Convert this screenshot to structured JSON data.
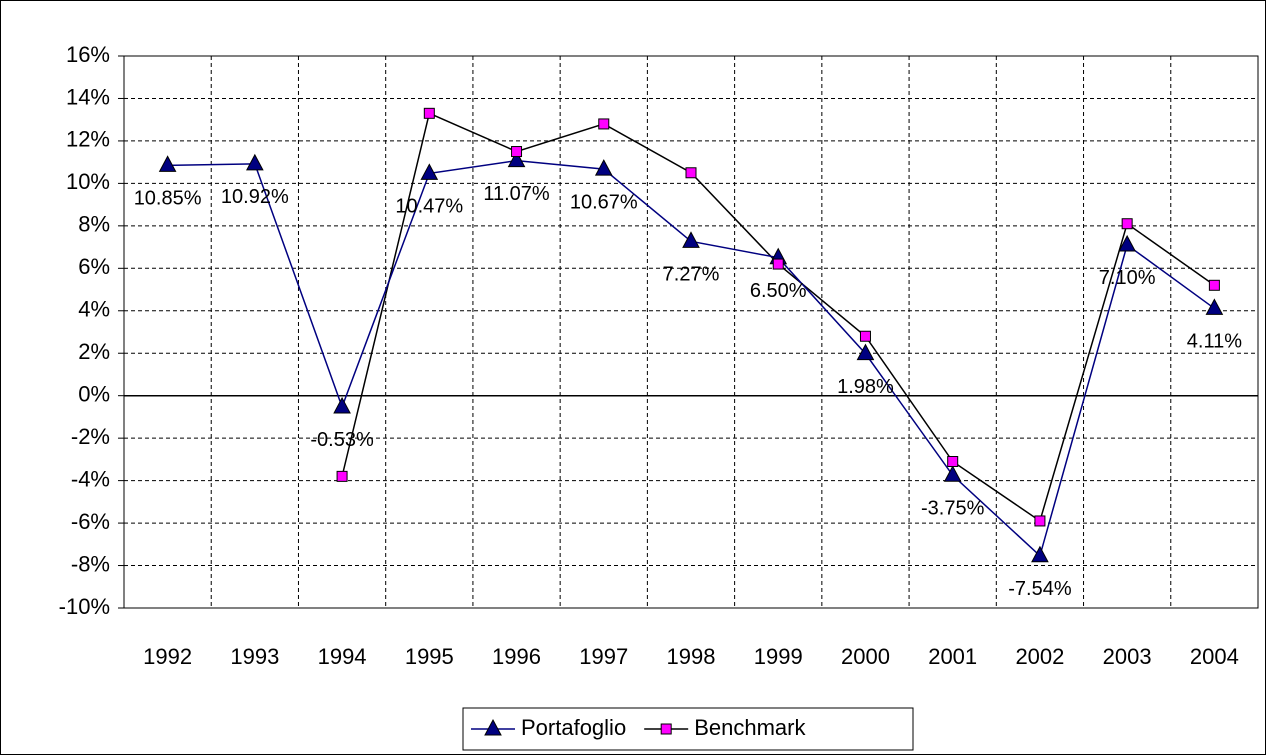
{
  "chart_data": {
    "type": "line",
    "categories": [
      "1992",
      "1993",
      "1994",
      "1995",
      "1996",
      "1997",
      "1998",
      "1999",
      "2000",
      "2001",
      "2002",
      "2003",
      "2004"
    ],
    "series": [
      {
        "name": "Portafoglio",
        "color": "#000080",
        "marker": "triangle",
        "values": [
          10.85,
          10.92,
          -0.53,
          10.47,
          11.07,
          10.67,
          7.27,
          6.5,
          1.98,
          -3.75,
          -7.54,
          7.1,
          4.11
        ],
        "value_labels": [
          "10.85%",
          "10.92%",
          "-0.53%",
          "10.47%",
          "11.07%",
          "10.67%",
          "7.27%",
          "6.50%",
          "1.98%",
          "-3.75%",
          "-7.54%",
          "7.10%",
          "4.11%"
        ]
      },
      {
        "name": "Benchmark",
        "color": "#000000",
        "marker_color": "#ff00ff",
        "marker": "square",
        "values": [
          null,
          null,
          -3.8,
          13.3,
          11.5,
          12.8,
          10.5,
          6.2,
          2.8,
          -3.1,
          -5.9,
          8.1,
          5.2
        ]
      }
    ],
    "ylim": [
      -10,
      16
    ],
    "yticks": [
      {
        "value": -10,
        "label": "-10%"
      },
      {
        "value": -8,
        "label": "-8%"
      },
      {
        "value": -6,
        "label": "-6%"
      },
      {
        "value": -4,
        "label": "-4%"
      },
      {
        "value": -2,
        "label": "-2%"
      },
      {
        "value": 0,
        "label": "0%"
      },
      {
        "value": 2,
        "label": "2%"
      },
      {
        "value": 4,
        "label": "4%"
      },
      {
        "value": 6,
        "label": "6%"
      },
      {
        "value": 8,
        "label": "8%"
      },
      {
        "value": 10,
        "label": "10%"
      },
      {
        "value": 12,
        "label": "12%"
      },
      {
        "value": 14,
        "label": "14%"
      },
      {
        "value": 16,
        "label": "16%"
      }
    ],
    "grid": true,
    "legend": "bottom"
  }
}
